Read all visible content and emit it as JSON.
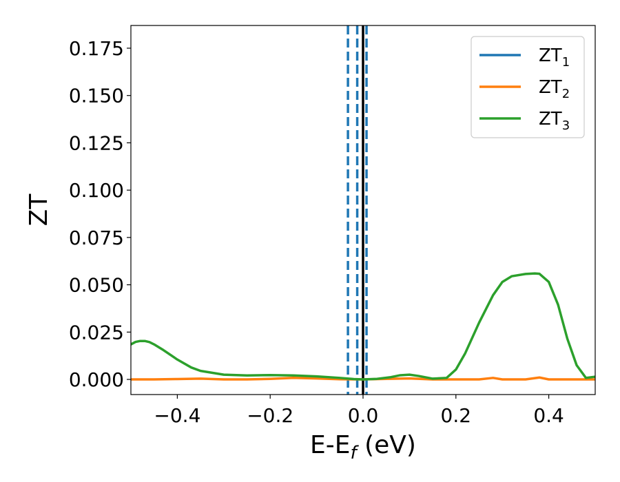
{
  "chart_data": {
    "type": "line",
    "xlabel": {
      "main": "E-E",
      "sub": "f",
      "suffix": " (eV)"
    },
    "ylabel": "ZT",
    "xlim": [
      -0.5,
      0.5
    ],
    "ylim": [
      -0.008,
      0.187
    ],
    "x_ticks": [
      -0.4,
      -0.2,
      0.0,
      0.2,
      0.4
    ],
    "x_tick_labels": [
      "−0.4",
      "−0.2",
      "0.0",
      "0.2",
      "0.4"
    ],
    "y_ticks": [
      0.0,
      0.025,
      0.05,
      0.075,
      0.1,
      0.125,
      0.15,
      0.175
    ],
    "y_tick_labels": [
      "0.000",
      "0.025",
      "0.050",
      "0.075",
      "0.100",
      "0.125",
      "0.150",
      "0.175"
    ],
    "legend_position": "top-right",
    "series": [
      {
        "name": "ZT",
        "name_sub": "1",
        "color": "#1f77b4",
        "x": [],
        "y": []
      },
      {
        "name": "ZT",
        "name_sub": "2",
        "color": "#ff7f0e",
        "x": [
          -0.5,
          -0.45,
          -0.4,
          -0.35,
          -0.3,
          -0.25,
          -0.2,
          -0.15,
          -0.1,
          -0.05,
          0.0,
          0.05,
          0.1,
          0.15,
          0.2,
          0.25,
          0.28,
          0.3,
          0.35,
          0.38,
          0.4,
          0.45,
          0.5
        ],
        "y": [
          0.0,
          0.0,
          0.0002,
          0.0004,
          0.0,
          0.0,
          0.0003,
          0.0008,
          0.0005,
          0.0001,
          0.0,
          0.0003,
          0.0005,
          0.0,
          0.0,
          0.0,
          0.0008,
          0.0,
          0.0,
          0.001,
          0.0,
          0.0,
          0.0
        ]
      },
      {
        "name": "ZT",
        "name_sub": "3",
        "color": "#2ca02c",
        "x": [
          -0.5,
          -0.49,
          -0.48,
          -0.47,
          -0.46,
          -0.45,
          -0.43,
          -0.4,
          -0.37,
          -0.35,
          -0.3,
          -0.25,
          -0.2,
          -0.15,
          -0.1,
          -0.05,
          -0.02,
          0.0,
          0.03,
          0.06,
          0.08,
          0.1,
          0.12,
          0.15,
          0.18,
          0.2,
          0.22,
          0.25,
          0.28,
          0.3,
          0.32,
          0.35,
          0.37,
          0.38,
          0.4,
          0.42,
          0.44,
          0.46,
          0.48,
          0.5
        ],
        "y": [
          0.0185,
          0.0198,
          0.0203,
          0.0203,
          0.0197,
          0.0185,
          0.0155,
          0.0105,
          0.0063,
          0.0045,
          0.0025,
          0.0021,
          0.0023,
          0.0021,
          0.0016,
          0.0008,
          0.0002,
          0.0,
          0.0003,
          0.0012,
          0.0022,
          0.0025,
          0.0018,
          0.0004,
          0.0008,
          0.0052,
          0.0138,
          0.03,
          0.0445,
          0.0515,
          0.0545,
          0.0557,
          0.056,
          0.0558,
          0.0515,
          0.0395,
          0.0215,
          0.0075,
          0.0008,
          0.0014
        ]
      }
    ],
    "vertical_lines": [
      {
        "x": -0.0325,
        "color": "#1f77b4",
        "style": "dashed"
      },
      {
        "x": -0.0125,
        "color": "#1f77b4",
        "style": "dashed"
      },
      {
        "x": 0.0075,
        "color": "#1f77b4",
        "style": "dashed"
      },
      {
        "x": 0.0,
        "color": "#000000",
        "style": "solid"
      }
    ],
    "grid": false
  }
}
